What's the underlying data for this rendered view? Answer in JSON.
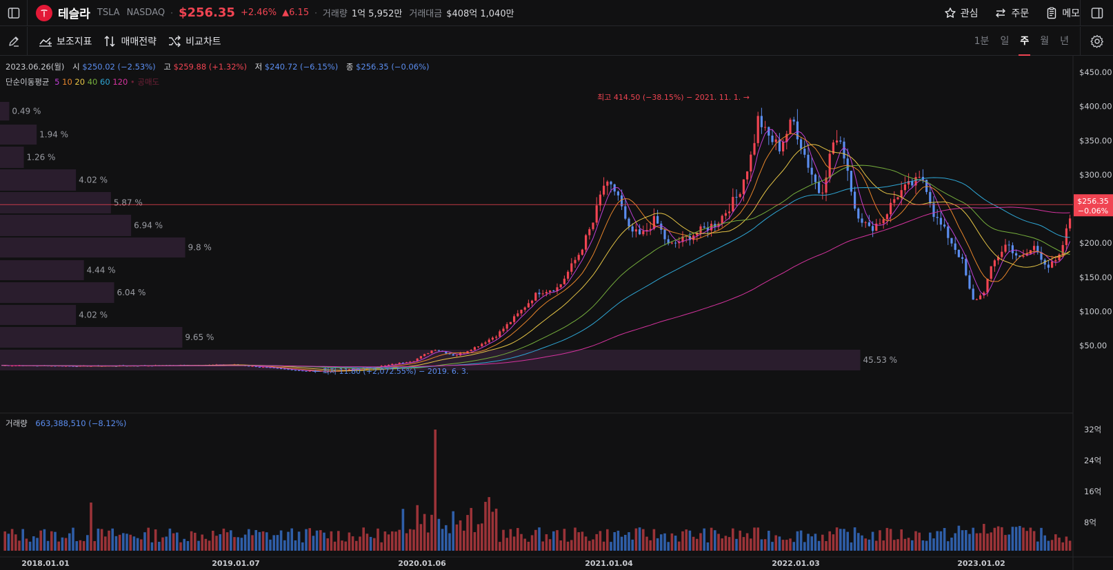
{
  "header": {
    "name": "테슬라",
    "ticker": "TSLA",
    "exchange": "NASDAQ",
    "price": "$256.35",
    "change_pct": "+2.46%",
    "change_abs": "▲6.15",
    "volume_label": "거래량",
    "volume": "1억 5,952만",
    "turnover_label": "거래대금",
    "turnover": "$408억 1,040만",
    "actions": {
      "watch": "관심",
      "order": "주문",
      "memo": "메모"
    }
  },
  "toolbar": {
    "indicators": "보조지표",
    "strategy": "매매전략",
    "compare": "비교차트",
    "periods": [
      "1분",
      "일",
      "주",
      "월",
      "년"
    ],
    "active_period": "주"
  },
  "info": {
    "date": "2023.06.26(월)",
    "open_label": "시",
    "open": "$250.02 (−2.53%)",
    "high_label": "고",
    "high": "$259.88 (+1.32%)",
    "low_label": "저",
    "low": "$240.72 (−6.15%)",
    "close_label": "종",
    "close": "$256.35 (−0.06%)",
    "ma_label": "단순이동평균",
    "ma_periods": [
      "5",
      "10",
      "20",
      "40",
      "60",
      "120"
    ],
    "ma_extra": "• 공매도"
  },
  "colors": {
    "up": "#f04452",
    "down": "#5b8def",
    "ma5": "#c13fd6",
    "ma10": "#e9862b",
    "ma20": "#e6c546",
    "ma40": "#77b03d",
    "ma60": "#2fa7d6",
    "ma120": "#d6339f"
  },
  "volume_info": {
    "label": "거래량",
    "value": "663,388,510 (−8.12%)"
  },
  "annotations": {
    "high": "최고 414.50 (−38.15%) − 2021. 11. 1. →",
    "low": "← 최저 11.80 (+2,072.55%) − 2019. 6. 3."
  },
  "price_tag": {
    "price": "$256.35",
    "change": "−0.06%"
  },
  "chart_data": {
    "type": "line",
    "price_axis": [
      "$450.00",
      "$400.00",
      "$350.00",
      "$300.00",
      "$250.00",
      "$200.00",
      "$150.00",
      "$100.00",
      "$50.00"
    ],
    "volume_axis": [
      "32억",
      "24억",
      "16억",
      "8억"
    ],
    "x_labels": [
      "2018.01.01",
      "2019.01.07",
      "2020.01.06",
      "2021.01.04",
      "2022.01.03",
      "2023.01.02"
    ],
    "volume_profile": [
      {
        "label": "0.49 %",
        "pct": 0.49
      },
      {
        "label": "1.94 %",
        "pct": 1.94
      },
      {
        "label": "1.26 %",
        "pct": 1.26
      },
      {
        "label": "4.02 %",
        "pct": 4.02
      },
      {
        "label": "5.87 %",
        "pct": 5.87
      },
      {
        "label": "6.94 %",
        "pct": 6.94
      },
      {
        "label": "9.8 %",
        "pct": 9.8
      },
      {
        "label": "4.44 %",
        "pct": 4.44
      },
      {
        "label": "6.04 %",
        "pct": 6.04
      },
      {
        "label": "4.02 %",
        "pct": 4.02
      },
      {
        "label": "9.65 %",
        "pct": 9.65
      },
      {
        "label": "45.53 %",
        "pct": 45.53
      }
    ],
    "close_series": {
      "x": [
        "2018.01",
        "2018.07",
        "2019.01",
        "2019.06",
        "2020.01",
        "2020.03",
        "2020.08",
        "2020.12",
        "2021.01",
        "2021.03",
        "2021.07",
        "2021.11",
        "2022.01",
        "2022.05",
        "2022.08",
        "2022.12",
        "2023.01",
        "2023.04",
        "2023.06"
      ],
      "y": [
        21,
        20,
        22,
        12,
        30,
        33,
        100,
        220,
        290,
        220,
        220,
        410,
        350,
        220,
        290,
        120,
        145,
        165,
        256
      ]
    },
    "current_price": 256.35
  }
}
